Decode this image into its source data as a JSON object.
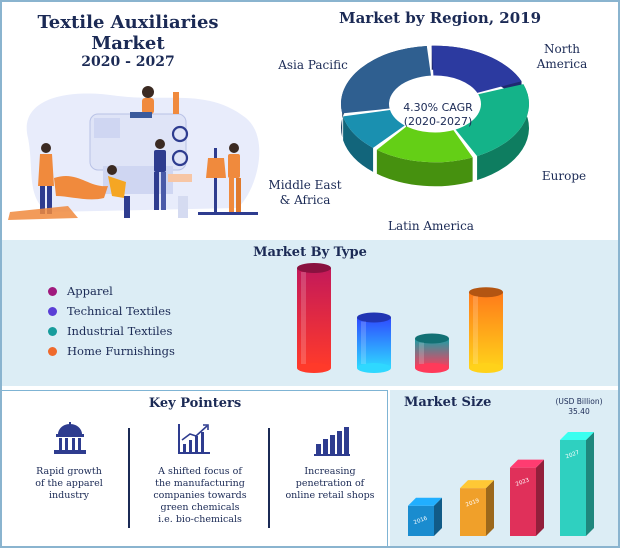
{
  "header": {
    "title_line1": "Textile Auxiliaries",
    "title_line2": "Market",
    "years": "2020 - 2027"
  },
  "region": {
    "title": "Market by Region, 2019",
    "cagr_line1": "4.30% CAGR",
    "cagr_line2": "(2020-2027)",
    "labels": {
      "north_america_1": "North",
      "north_america_2": "America",
      "asia_pacific": "Asia Pacific",
      "europe": "Europe",
      "mea_1": "Middle East",
      "mea_2": "& Africa",
      "latin_america": "Latin America"
    }
  },
  "type_section": {
    "title": "Market By Type",
    "legend": [
      {
        "label": "Apparel",
        "color": "#a01a7d"
      },
      {
        "label": "Technical Textiles",
        "color": "#5a3fd6"
      },
      {
        "label": "Industrial Textiles",
        "color": "#179c9c"
      },
      {
        "label": "Home Furnishings",
        "color": "#ef6a2c"
      }
    ]
  },
  "pointers": {
    "title": "Key Pointers",
    "items": [
      {
        "line1": "Rapid growth",
        "line2": "of the apparel",
        "line3": "industry"
      },
      {
        "line1": "A shifted focus of",
        "line2": "the manufacturing",
        "line3": "companies towards",
        "line4": "green chemicals",
        "line5": "i.e. bio-chemicals"
      },
      {
        "line1": "Increasing",
        "line2": "penetration of",
        "line3": "online retail shops"
      }
    ]
  },
  "size_section": {
    "title": "Market Size",
    "unit": "(USD Billion)",
    "value_label": "35.40"
  },
  "chart_data": [
    {
      "type": "pie",
      "title": "Market by Region, 2019",
      "categories": [
        "North America",
        "Europe",
        "Latin America",
        "Middle East & Africa",
        "Asia Pacific"
      ],
      "values": [
        20,
        24,
        18,
        11,
        27
      ],
      "colors": [
        "#2c3aa0",
        "#14b389",
        "#64cf16",
        "#1a90b0",
        "#2f5f90"
      ]
    },
    {
      "type": "bar",
      "title": "Market By Type",
      "categories": [
        "Apparel",
        "Technical Textiles",
        "Industrial Textiles",
        "Home Furnishings"
      ],
      "values": [
        95,
        48,
        28,
        72
      ],
      "colors": [
        "#a01a7d",
        "#5a3fd6",
        "#179c9c",
        "#ef6a2c"
      ]
    },
    {
      "type": "bar",
      "title": "Market Size",
      "ylabel": "(USD Billion)",
      "categories": [
        "2016",
        "2019",
        "2023",
        "2027"
      ],
      "values": [
        13,
        19,
        26,
        35.4
      ],
      "colors": [
        "#1a8ccf",
        "#f0a02a",
        "#e0305a",
        "#2fd0c0"
      ]
    }
  ]
}
